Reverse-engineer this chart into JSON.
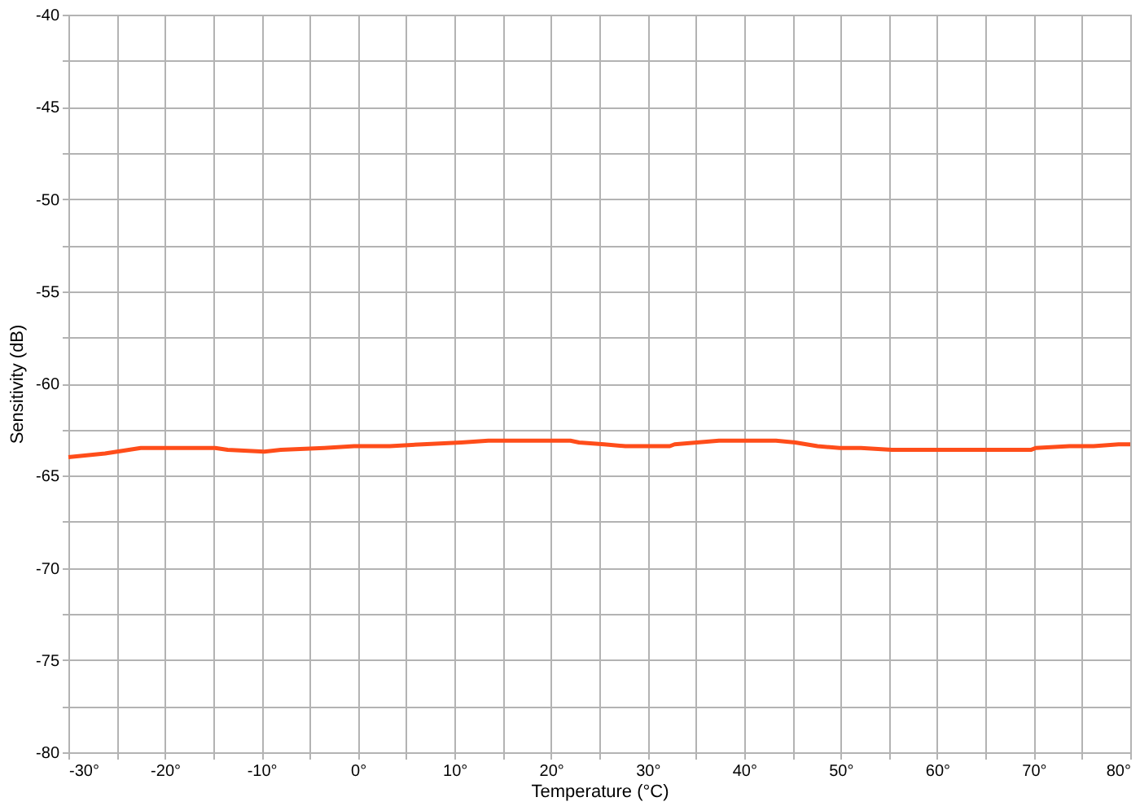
{
  "chart_data": {
    "type": "line",
    "xlabel": "Temperature (°C)",
    "ylabel": "Sensitivity (dB)",
    "x": [
      -30,
      -26.2,
      -22.5,
      -14.8,
      -13.5,
      -9.7,
      -8,
      -3.5,
      -0.4,
      3.3,
      6.7,
      10.7,
      13.5,
      22,
      22.9,
      25.5,
      27.7,
      32.3,
      32.8,
      37.4,
      43.3,
      45.3,
      47.6,
      49.9,
      52.1,
      55.3,
      69.7,
      70.2,
      73.7,
      76.2,
      78.8,
      80
    ],
    "series": [
      {
        "color": "#ff4d1a",
        "values": [
          -64.0,
          -63.8,
          -63.5,
          -63.5,
          -63.6,
          -63.7,
          -63.6,
          -63.5,
          -63.4,
          -63.4,
          -63.3,
          -63.2,
          -63.1,
          -63.1,
          -63.2,
          -63.3,
          -63.4,
          -63.4,
          -63.3,
          -63.1,
          -63.1,
          -63.2,
          -63.4,
          -63.5,
          -63.5,
          -63.6,
          -63.6,
          -63.5,
          -63.4,
          -63.4,
          -63.3,
          -63.3
        ]
      }
    ],
    "xlim": [
      -30,
      80
    ],
    "xticks": [
      {
        "value": -30,
        "label": "-30°"
      },
      {
        "value": -25,
        "label": null
      },
      {
        "value": -20,
        "label": "-20°"
      },
      {
        "value": -15,
        "label": null
      },
      {
        "value": -10,
        "label": "-10°"
      },
      {
        "value": -5,
        "label": null
      },
      {
        "value": 0,
        "label": "0°"
      },
      {
        "value": 5,
        "label": null
      },
      {
        "value": 10,
        "label": "10°"
      },
      {
        "value": 15,
        "label": null
      },
      {
        "value": 20,
        "label": "20°"
      },
      {
        "value": 25,
        "label": null
      },
      {
        "value": 30,
        "label": "30°"
      },
      {
        "value": 35,
        "label": null
      },
      {
        "value": 40,
        "label": "40°"
      },
      {
        "value": 45,
        "label": null
      },
      {
        "value": 50,
        "label": "50°"
      },
      {
        "value": 55,
        "label": null
      },
      {
        "value": 60,
        "label": "60°"
      },
      {
        "value": 65,
        "label": null
      },
      {
        "value": 70,
        "label": "70°"
      },
      {
        "value": 75,
        "label": null
      },
      {
        "value": 80,
        "label": "80°"
      }
    ],
    "ylim": [
      -80,
      -40
    ],
    "yticks": [
      -80,
      {
        "value": -77.5,
        "label": null
      },
      -75,
      {
        "value": -72.5,
        "label": null
      },
      -70,
      {
        "value": -67.5,
        "label": null
      },
      -65,
      {
        "value": -62.5,
        "label": null
      },
      -60,
      {
        "value": -57.5,
        "label": null
      },
      -55,
      {
        "value": -52.5,
        "label": null
      },
      -50,
      {
        "value": -47.5,
        "label": null
      },
      -45,
      {
        "value": -42.5,
        "label": null
      },
      -40
    ],
    "grid": true,
    "marker": "none",
    "line_style": "solid"
  }
}
